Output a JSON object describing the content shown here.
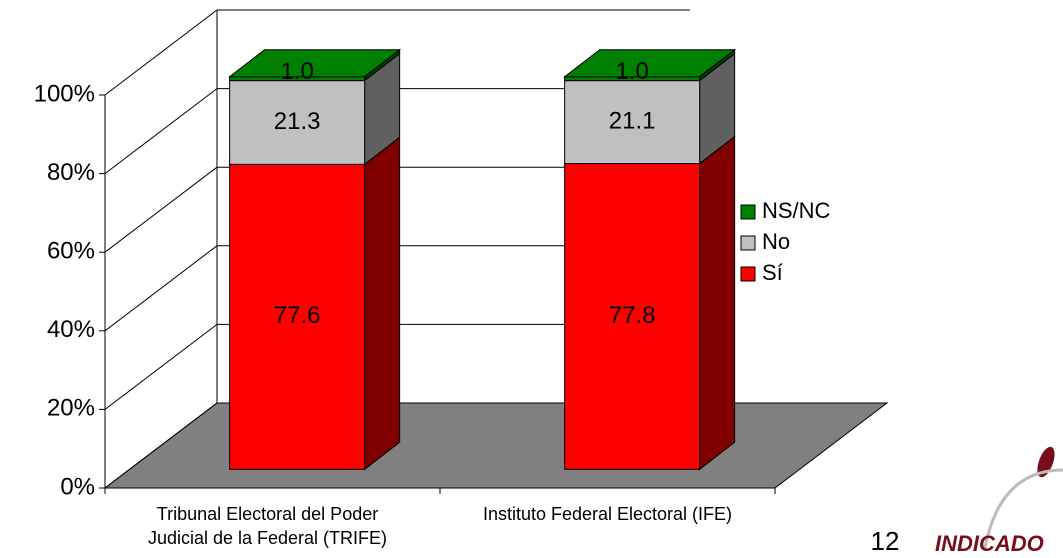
{
  "chart_data": {
    "type": "bar3d_stacked",
    "categories": [
      "Tribunal Electoral del Poder Judicial de la Federal (TRIFE)",
      "Instituto Federal Electoral (IFE)"
    ],
    "series": [
      {
        "name": "Sí",
        "color": "#ff0000",
        "side_color": "#800000",
        "values": [
          77.6,
          77.8
        ]
      },
      {
        "name": "No",
        "color": "#c0c0c0",
        "side_color": "#606060",
        "values": [
          21.3,
          21.1
        ]
      },
      {
        "name": "NS/NC",
        "color": "#008000",
        "side_color": "#004000",
        "values": [
          1.0,
          1.0
        ],
        "value_labels": [
          "1.0",
          "1.0"
        ]
      }
    ],
    "ylim": [
      0,
      100
    ],
    "yticks": [
      {
        "value": 0,
        "label": "0%"
      },
      {
        "value": 20,
        "label": "20%"
      },
      {
        "value": 40,
        "label": "40%"
      },
      {
        "value": 60,
        "label": "60%"
      },
      {
        "value": 80,
        "label": "80%"
      },
      {
        "value": 100,
        "label": "100%"
      }
    ],
    "grid": true,
    "legend": "right"
  },
  "page_number": "12",
  "logo_text": "INDICADO"
}
